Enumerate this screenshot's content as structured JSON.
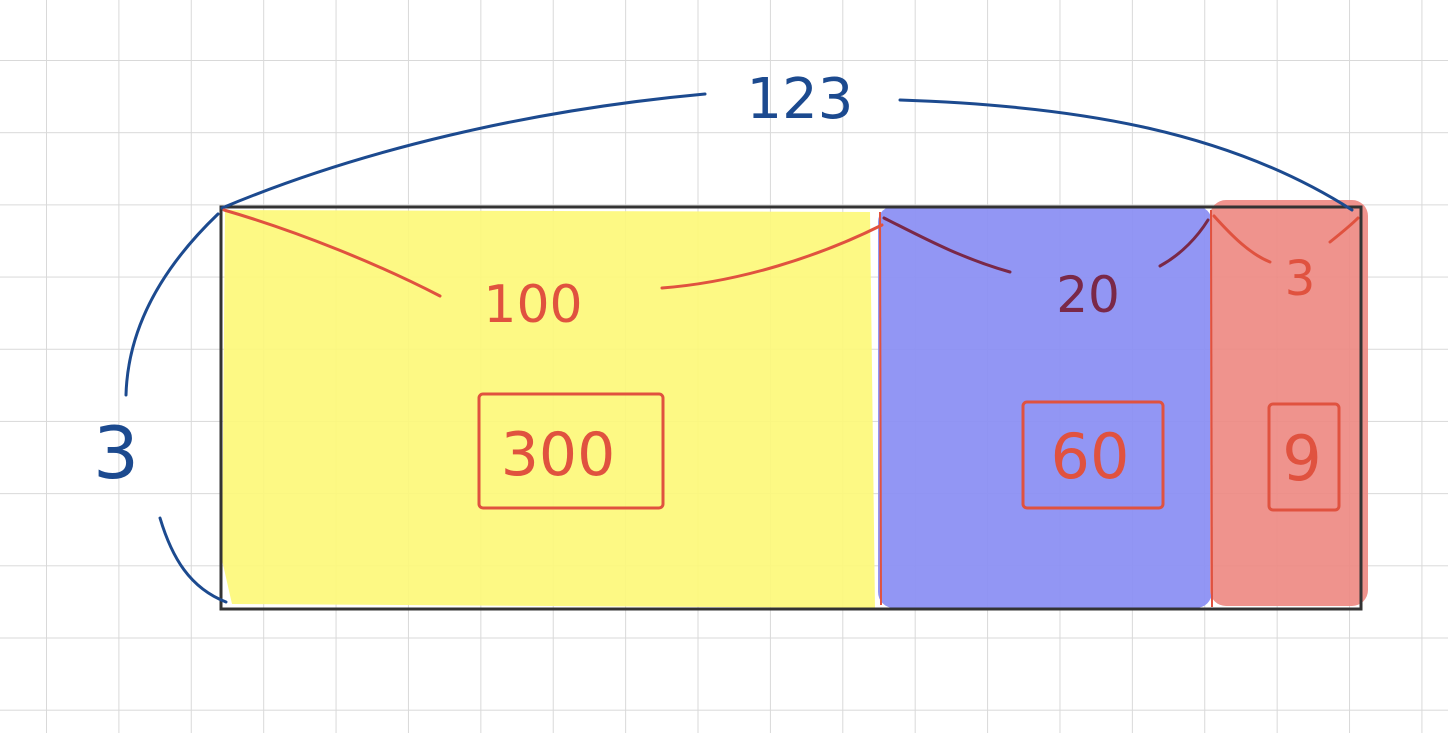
{
  "diagram": {
    "total_width_label": "123",
    "height_label": "3",
    "segments": [
      {
        "width_label": "100",
        "product_label": "300",
        "fill": "#fdf97a"
      },
      {
        "width_label": "20",
        "product_label": "60",
        "fill": "#8c90f3"
      },
      {
        "width_label": "3",
        "product_label": "9",
        "fill": "#ee8a83"
      }
    ]
  },
  "colors": {
    "blue_ink": "#1c4a8f",
    "red_ink": "#e0523f",
    "dark_red_ink": "#7a2848",
    "outline": "#333333",
    "grid": "#d9d9d9"
  }
}
